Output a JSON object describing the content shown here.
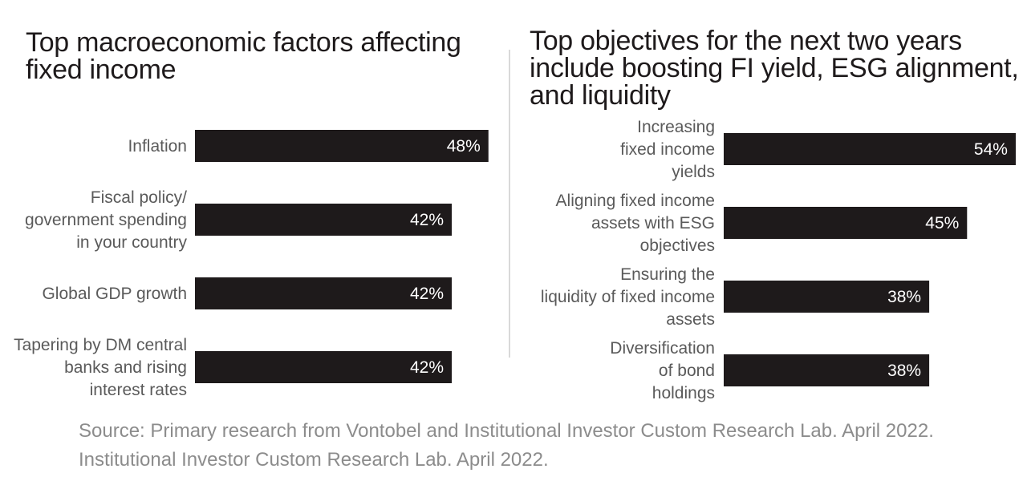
{
  "footer": {
    "line1": "Source: Primary research from Vontobel and Institutional Investor Custom Research Lab. April 2022.",
    "line2": "Institutional Investor Custom Research Lab. April 2022."
  },
  "colors": {
    "bar": "#1e1a1b",
    "bar_label": "#ffffff",
    "category_label": "#5a5a5a",
    "title": "#1e1a1b",
    "footer": "#8c8c8c",
    "divider": "#d9d9d9"
  },
  "chart_data": [
    {
      "type": "bar",
      "orientation": "horizontal",
      "title": "Top macroeconomic factors affecting fixed income",
      "categories": [
        "Inflation",
        "Fiscal policy/ government spending in your country",
        "Global GDP growth",
        "Tapering by DM central banks and rising interest rates"
      ],
      "category_lines": [
        [
          "Inflation"
        ],
        [
          "Fiscal policy/",
          "government spending",
          "in your country"
        ],
        [
          "Global GDP growth"
        ],
        [
          "Tapering by DM central",
          "banks and rising",
          "interest rates"
        ]
      ],
      "values": [
        48,
        42,
        42,
        42
      ],
      "value_labels": [
        "48%",
        "42%",
        "42%",
        "42%"
      ],
      "unit": "%",
      "xlim": [
        0,
        100
      ],
      "grid": false,
      "legend": "none"
    },
    {
      "type": "bar",
      "orientation": "horizontal",
      "title": "Top objectives for the next two years include boosting FI yield, ESG alignment, and liquidity",
      "categories": [
        "Increasing fixed income yields",
        "Aligning fixed income assets with ESG objectives",
        "Ensuring the liquidity of fixed income assets",
        "Diversification of bond holdings"
      ],
      "category_lines": [
        [
          "Increasing",
          "fixed income",
          "yields"
        ],
        [
          "Aligning fixed income",
          "assets with ESG",
          "objectives"
        ],
        [
          "Ensuring the",
          "liquidity of fixed income",
          "assets"
        ],
        [
          "Diversification",
          "of bond",
          "holdings"
        ]
      ],
      "values": [
        54,
        45,
        38,
        38
      ],
      "value_labels": [
        "54%",
        "45%",
        "38%",
        "38%"
      ],
      "unit": "%",
      "xlim": [
        0,
        100
      ],
      "grid": false,
      "legend": "none"
    }
  ]
}
